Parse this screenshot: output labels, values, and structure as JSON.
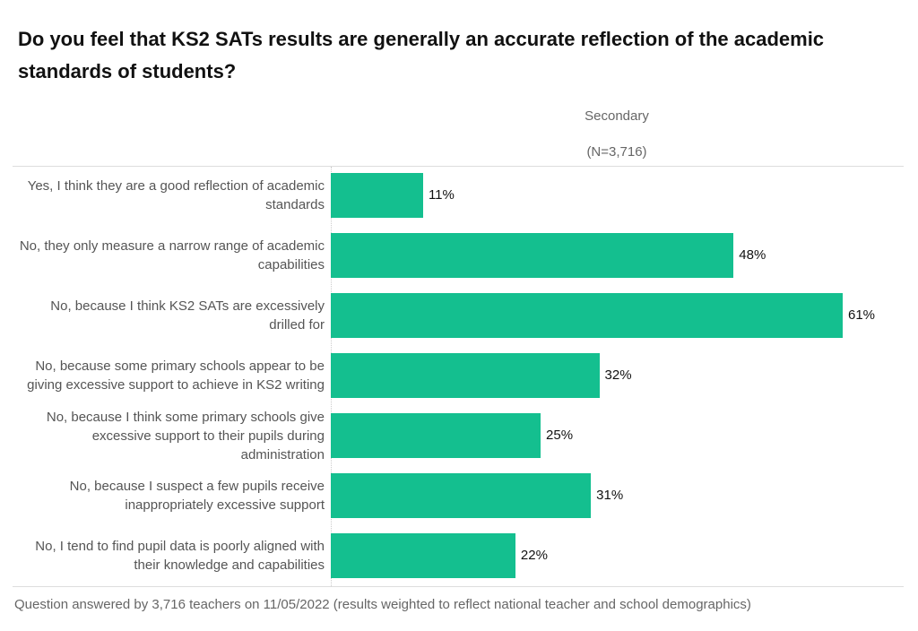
{
  "chart_data": {
    "type": "bar",
    "orientation": "horizontal",
    "title": "Do you feel that KS2 SATs results are generally an accurate reflection of the academic standards of students?",
    "series_header": "Secondary",
    "series_subheader": "(N=3,716)",
    "categories": [
      "Yes, I think they are a good reflection of academic standards",
      "No, they only measure a narrow range of academic capabilities",
      "No, because I think KS2 SATs are excessively drilled for",
      "No, because some primary schools appear to be giving excessive support to achieve in KS2 writing",
      "No, because I think some primary schools give excessive support to their pupils during administration",
      "No, because I suspect a few pupils receive inappropriately excessive support",
      "No, I tend to find pupil data is poorly aligned with their knowledge and capabilities"
    ],
    "values": [
      11,
      48,
      61,
      32,
      25,
      31,
      22
    ],
    "value_labels": [
      "11%",
      "48%",
      "61%",
      "32%",
      "25%",
      "31%",
      "22%"
    ],
    "unit": "%",
    "xlim": [
      0,
      61
    ],
    "grid": false,
    "bar_color": "#14bf8f",
    "footnote": "Question answered by 3,716 teachers on 11/05/2022 (results weighted to reflect national teacher and school demographics)"
  }
}
